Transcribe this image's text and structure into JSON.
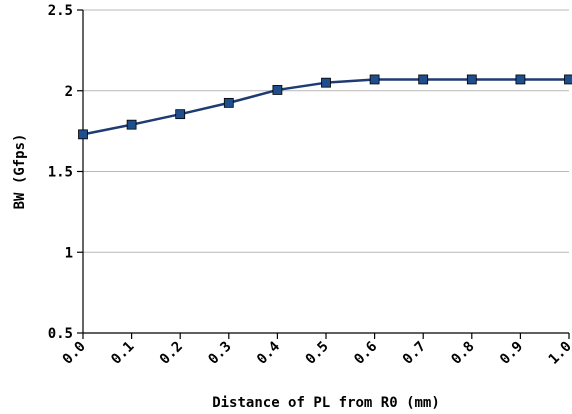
{
  "chart_data": {
    "type": "line",
    "title": "",
    "xlabel": "Distance of PL from R0 (mm)",
    "ylabel": "BW (Gfps)",
    "x": [
      0.0,
      0.1,
      0.2,
      0.3,
      0.4,
      0.5,
      0.6,
      0.7,
      0.8,
      0.9,
      1.0
    ],
    "x_tick_labels": [
      "0.0",
      "0.1",
      "0.2",
      "0.3",
      "0.4",
      "0.5",
      "0.6",
      "0.7",
      "0.8",
      "0.9",
      "1.0"
    ],
    "y_ticks": [
      0.5,
      1,
      1.5,
      2,
      2.5
    ],
    "y_tick_labels": [
      "0.5",
      "1",
      "1.5",
      "2",
      "2.5"
    ],
    "xlim": [
      0.0,
      1.0
    ],
    "ylim": [
      0.5,
      2.5
    ],
    "grid": "horizontal",
    "legend": "none",
    "series": [
      {
        "values": [
          1.73,
          1.79,
          1.855,
          1.925,
          2.005,
          2.05,
          2.07,
          2.07,
          2.07,
          2.07,
          2.07
        ],
        "color": "#1f3b73",
        "marker_color": "#1f4e8c",
        "marker": "square"
      }
    ]
  }
}
